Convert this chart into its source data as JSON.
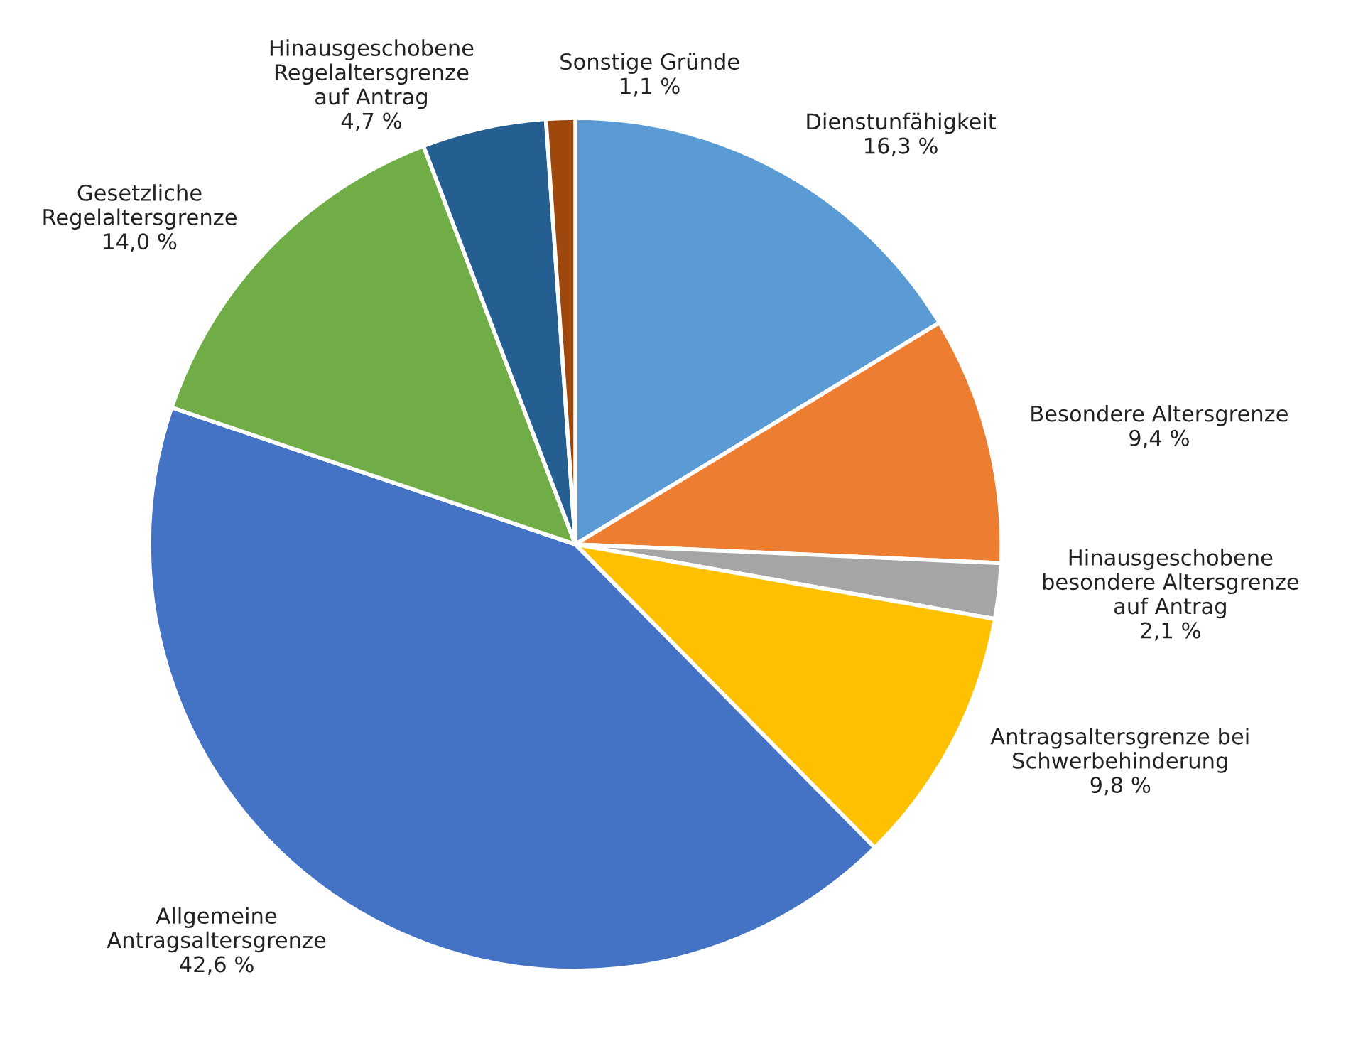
{
  "chart_data": {
    "type": "pie",
    "categories": [
      "Dienstunfähigkeit",
      "Besondere Altersgrenze",
      "Hinausgeschobene\nbesondere Altersgrenze\nauf Antrag",
      "Antragsaltersgrenze bei\nSchwerbehinderung",
      "Allgemeine\nAntragsaltersgrenze",
      "Gesetzliche\nRegelaltersgrenze",
      "Hinausgeschobene\nRegelaltersgrenze\nauf Antrag",
      "Sonstige Gründe"
    ],
    "values": [
      16.3,
      9.4,
      2.1,
      9.8,
      42.6,
      14.0,
      4.7,
      1.1
    ],
    "value_labels": [
      "16,3 %",
      "9,4 %",
      "2,1 %",
      "9,8 %",
      "42,6 %",
      "14,0 %",
      "4,7 %",
      "1,1 %"
    ],
    "colors": [
      "#5b9bd5",
      "#ed7d31",
      "#a5a5a5",
      "#ffc000",
      "#4472c4",
      "#70ad47",
      "#255e91",
      "#9e480e"
    ],
    "legend": false
  }
}
